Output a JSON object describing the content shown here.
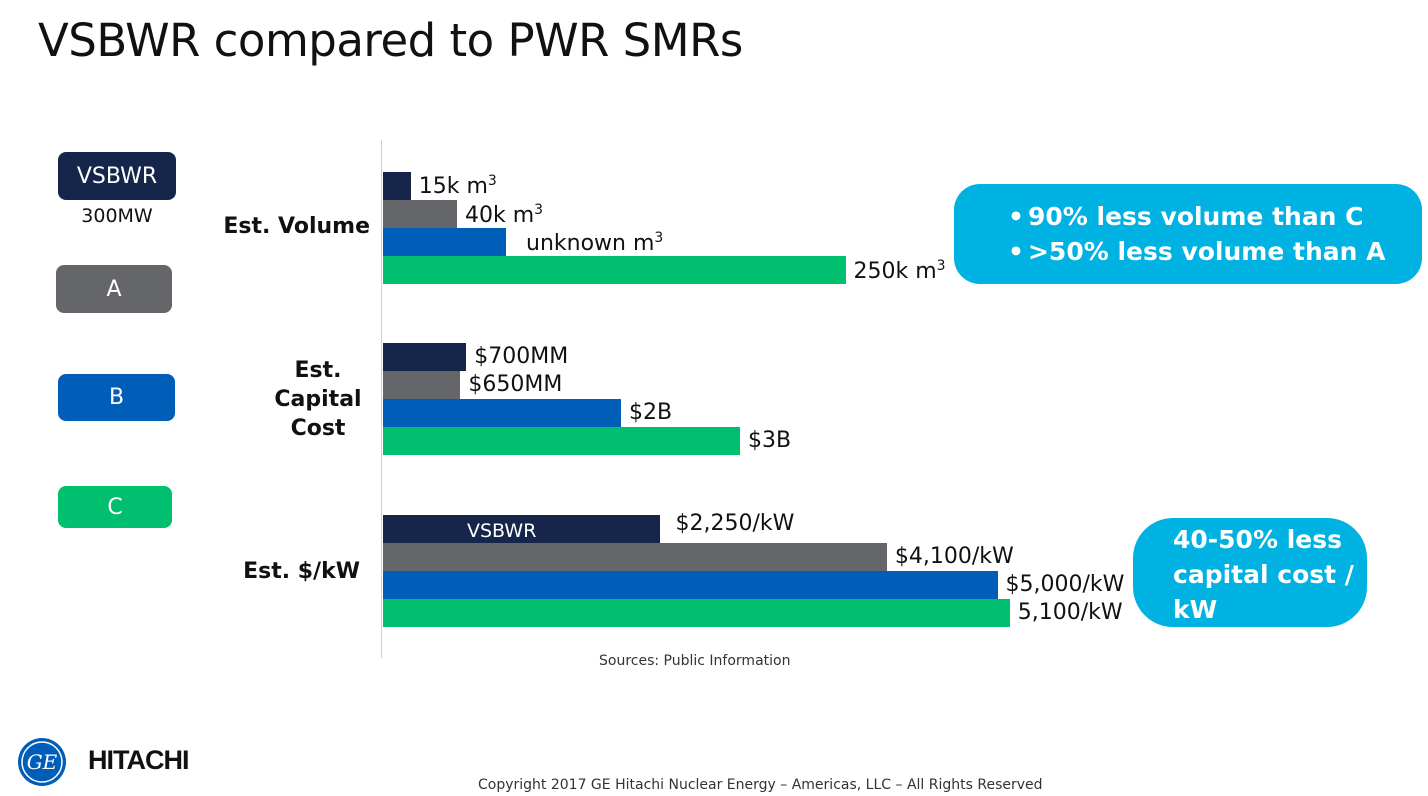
{
  "slide": {
    "title": "VSBWR compared to PWR SMRs",
    "sources": "Sources:  Public Information",
    "copyright": "Copyright 2017 GE Hitachi Nuclear Energy – Americas, LLC – All Rights Reserved"
  },
  "legend": [
    {
      "label": "VSBWR",
      "sublabel": "300MW",
      "color": "#16264a"
    },
    {
      "label": "A",
      "color": "#646669"
    },
    {
      "label": "B",
      "color": "#005eb8"
    },
    {
      "label": "C",
      "color": "#00bf6f"
    }
  ],
  "callouts": {
    "volume": [
      "90% less volume than C",
      ">50% less volume than A"
    ],
    "cost_lines": [
      "40-50% less",
      "capital cost /",
      "kW"
    ]
  },
  "logos": {
    "ge": "GE",
    "hitachi": "HITACHI"
  },
  "chart_data": {
    "type": "bar",
    "orientation": "horizontal",
    "grouped": true,
    "series_colors": {
      "VSBWR": "#16264a",
      "A": "#646669",
      "B": "#005eb8",
      "C": "#00bf6f"
    },
    "groups": [
      {
        "label": "Est. Volume",
        "unit": "k m3",
        "values": [
          15,
          40,
          null,
          250
        ],
        "value_labels": [
          "15k m",
          "40k m",
          "unknown m",
          "250k m"
        ],
        "superscripts": [
          "3",
          "3",
          "3",
          "3"
        ]
      },
      {
        "label": "Est. Capital Cost",
        "label_lines": [
          "Est.",
          "Capital",
          "Cost"
        ],
        "unit": "$B",
        "values": [
          0.7,
          0.65,
          2,
          3
        ],
        "value_labels": [
          "$700MM",
          "$650MM",
          "$2B",
          "$3B"
        ]
      },
      {
        "label": "Est. $/kW",
        "unit": "$/kW",
        "values": [
          2250,
          4100,
          5000,
          5100
        ],
        "value_labels": [
          "$2,250/kW",
          "$4,100/kW",
          "$5,000/kW",
          "5,100/kW"
        ],
        "inner_label": "VSBWR"
      }
    ]
  }
}
